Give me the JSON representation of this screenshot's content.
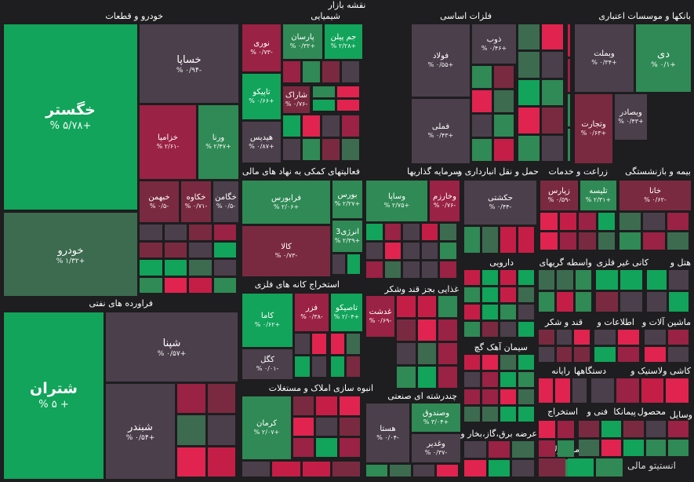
{
  "title": "نقشه بازار",
  "colors": {
    "dg": "#11a45a",
    "mg": "#2f8a55",
    "lg": "#3c6b50",
    "gr": "#4b3f4b",
    "mr": "#7a2a40",
    "dr": "#9a2244",
    "br": "#c41e47",
    "pk": "#e0244f"
  },
  "groups": {
    "g1": "خودرو و قطعات",
    "g2": "شیمیایی",
    "g3": "فلزات اساسی",
    "g4": "بانکها و موسسات اعتباری",
    "g5": "فعالیتهای کمکی به نهاد های مالی",
    "g6": "سرمایه گذاریها",
    "g7": "حمل و نقل انبارداری و",
    "g8": "زراعت و خدمات",
    "g9": "بیمه و بازنشستگی",
    "g10": "فراورده های نفتی",
    "g11": "استخراج کانه های فلزی",
    "g12": "غذایی بجز قند وشکر",
    "g13": "دارویی",
    "g14": "واسطه گریهای",
    "g15": "کانی غیر فلزی",
    "g16": "هتل و",
    "g17": "سیمان آهک گچ",
    "g18": "قند و شکر",
    "g19": "اطلاعات و",
    "g20": "ماشین آلات و",
    "g21": "رایانه",
    "g22": "کاشی و",
    "g23": "لاستیک و",
    "g24": "دستگاهها",
    "g25": "انبوه سازی املاک و مستغلات",
    "g26": "چندرشته ای صنعتی",
    "g27": "عرضه برق،گاز،بخار و",
    "g28": "استخراج",
    "g29": "فنی و",
    "g30": "محصول",
    "g31": "پیمانکا",
    "g32": "محصولات",
    "g33": "وسایل"
  },
  "tiles": {
    "khegostar": {
      "name": "خگستر",
      "val": "% ۵/۷۸+"
    },
    "khodro": {
      "name": "خودرو",
      "val": "% ۱/۳۲+"
    },
    "khsapa": {
      "name": "خساپا",
      "val": "% ۰/۹۴-"
    },
    "khzamia": {
      "name": "خزامیا",
      "val": "% ۲/۶۱-"
    },
    "vorna": {
      "name": "ورنا",
      "val": "% ۲/۴۷+"
    },
    "kheman": {
      "name": "خبهمن",
      "val": "% ۰/۵-"
    },
    "khkavo": {
      "name": "خکاوه",
      "val": "% ۰/۷۱-"
    },
    "khgaman": {
      "name": "خگامن",
      "val": "% ۰/۵-"
    },
    "nouri": {
      "name": "نوری",
      "val": "% ۰/۷۳-"
    },
    "parsan": {
      "name": "پارسان",
      "val": "% ۰/۳۲+"
    },
    "jampilen": {
      "name": "جم پیلن",
      "val": "% ۲/۲۸+"
    },
    "tapiko": {
      "name": "تاپیکو",
      "val": "% ۰/۶۶+"
    },
    "harak": {
      "name": "شاراک",
      "val": "% ۰/۷۶-"
    },
    "hedis": {
      "name": "هیدیس",
      "val": "% ۰/۸۷+"
    },
    "foolad": {
      "name": "فولاد",
      "val": "% ۰/۵۵+"
    },
    "zob": {
      "name": "ذوب",
      "val": "% ۰/۴۶+"
    },
    "fameli": {
      "name": "فملی",
      "val": "% ۰/۴۳+"
    },
    "dey": {
      "name": "دی",
      "val": "% ۰/۱+"
    },
    "vbmellat": {
      "name": "وبملت",
      "val": "% ۰/۳۴+"
    },
    "vbsader": {
      "name": "وبصادر",
      "val": "% ۰/۴۳+"
    },
    "vtejarat": {
      "name": "وتجارت",
      "val": "% ۰/۶۳+"
    },
    "faraboors": {
      "name": "فرابورس",
      "val": "% ۲/۰۶+"
    },
    "boors": {
      "name": "بورس",
      "val": "% ۲/۲۷+"
    },
    "kala": {
      "name": "کالا",
      "val": "% ۰/۷۳-"
    },
    "energy3": {
      "name": "انرژی3",
      "val": "% ۲/۳۹+"
    },
    "vsapa": {
      "name": "وساپا",
      "val": "% ۲/۷۵+"
    },
    "vkharazm": {
      "name": "وخارزم",
      "val": "% ۰/۷۶-"
    },
    "hakashti": {
      "name": "حکشتی",
      "val": "% ۰/۴۴-"
    },
    "parsan2": {
      "name": "زپارس",
      "val": "% ۰/۵۹-"
    },
    "telise": {
      "name": "تلیسه",
      "val": "% ۲/۳۱+"
    },
    "kharg": {
      "name": "خانا",
      "val": "% ۰/۶۲-"
    },
    "shatran": {
      "name": "شتران",
      "val": "% ۵ +"
    },
    "shepna": {
      "name": "شپنا",
      "val": "% ۰/۵۷+"
    },
    "shabandar": {
      "name": "شبندر",
      "val": "% ۰/۵۴+"
    },
    "kama": {
      "name": "کاما",
      "val": "% ۰/۶۲+"
    },
    "fazar": {
      "name": "فزر",
      "val": "% ۰/۳۸-"
    },
    "tapico2": {
      "name": "تاصیکو",
      "val": "% ۲/۰۴+"
    },
    "kagol": {
      "name": "کگل",
      "val": "% ۰/۰۱-"
    },
    "ghadasht": {
      "name": "غدشت",
      "val": "% ۰/۶۹-"
    },
    "kerman": {
      "name": "کرمان",
      "val": "% ۲/۰۷+"
    },
    "vsanat": {
      "name": "وصندوق",
      "val": "% ۳/۰۴+"
    },
    "hasta": {
      "name": "هستا",
      "val": "% ۰/۰۴-"
    },
    "vghadir": {
      "name": "وغدیر",
      "val": "% ۰/۳۷-"
    }
  },
  "watermark": "انستیتو مالی"
}
